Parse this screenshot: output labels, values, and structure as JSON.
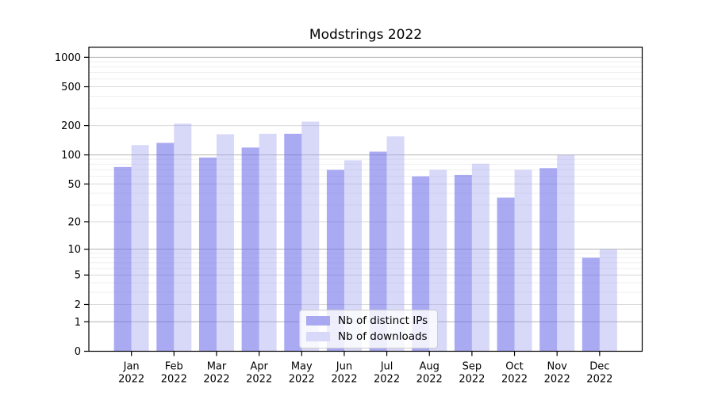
{
  "chart_data": {
    "type": "bar",
    "title": "Modstrings 2022",
    "categories": [
      "Jan",
      "Feb",
      "Mar",
      "Apr",
      "May",
      "Jun",
      "Jul",
      "Aug",
      "Sep",
      "Oct",
      "Nov",
      "Dec"
    ],
    "x_year": "2022",
    "series": [
      {
        "name": "Nb of distinct IPs",
        "fill": "rgba(113,113,235,0.60)",
        "swatch": "#a9a9f2",
        "values": [
          75,
          133,
          94,
          119,
          165,
          70,
          108,
          60,
          62,
          36,
          73,
          8
        ]
      },
      {
        "name": "Nb of downloads",
        "fill": "rgba(158,158,238,0.40)",
        "swatch": "#d8d8f8",
        "values": [
          126,
          210,
          163,
          165,
          220,
          88,
          155,
          70,
          81,
          70,
          100,
          10
        ]
      }
    ],
    "y_axis": {
      "scale": "log1p",
      "tick_values": [
        0,
        1,
        2,
        5,
        10,
        20,
        50,
        100,
        200,
        500,
        1000
      ],
      "minor_gridlines": [
        3,
        4,
        6,
        7,
        8,
        9,
        30,
        40,
        60,
        70,
        80,
        90,
        300,
        400,
        600,
        700,
        800,
        900
      ],
      "ylim": [
        0,
        1270
      ]
    },
    "legend_position": "lower-center",
    "grid": true,
    "colors": {
      "grid_major": "#b2b2b2",
      "grid_mid": "#dadada",
      "grid_minor": "#efefef",
      "frame": "#000000",
      "text": "#000000",
      "background": "#ffffff"
    }
  }
}
